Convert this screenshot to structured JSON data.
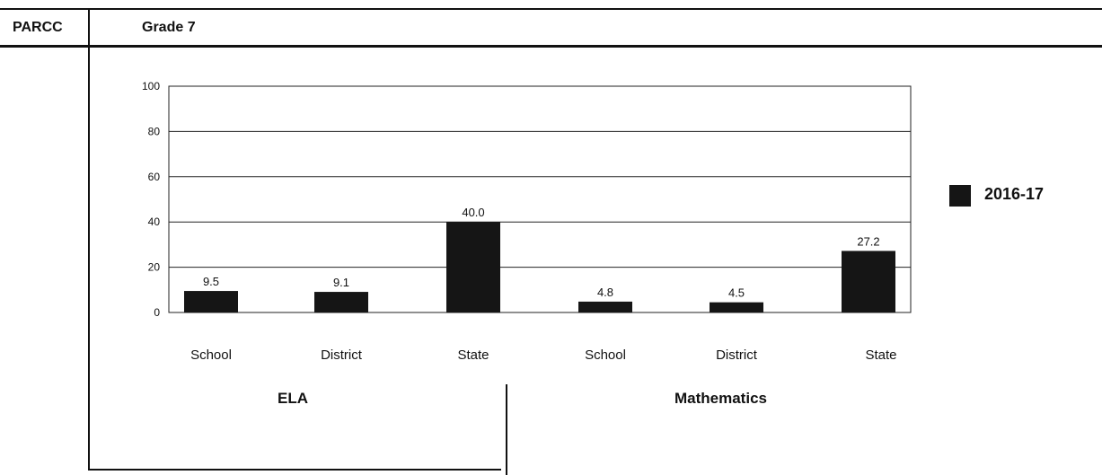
{
  "header": {
    "assessment": "PARCC",
    "grade": "Grade 7"
  },
  "legend": {
    "label": "2016-17",
    "color": "#151515"
  },
  "chart_data": {
    "type": "bar",
    "categories": [
      "School",
      "District",
      "State",
      "School",
      "District",
      "State"
    ],
    "groups": [
      "ELA",
      "Mathematics"
    ],
    "series": [
      {
        "name": "2016-17",
        "values": [
          9.5,
          9.1,
          40.0,
          4.8,
          4.5,
          27.2
        ],
        "labels": [
          "9.5",
          "9.1",
          "40.0",
          "4.8",
          "4.5",
          "27.2"
        ]
      }
    ],
    "ylim": [
      0,
      100
    ],
    "yticks": [
      0,
      20,
      40,
      60,
      80,
      100
    ],
    "grid": true
  }
}
